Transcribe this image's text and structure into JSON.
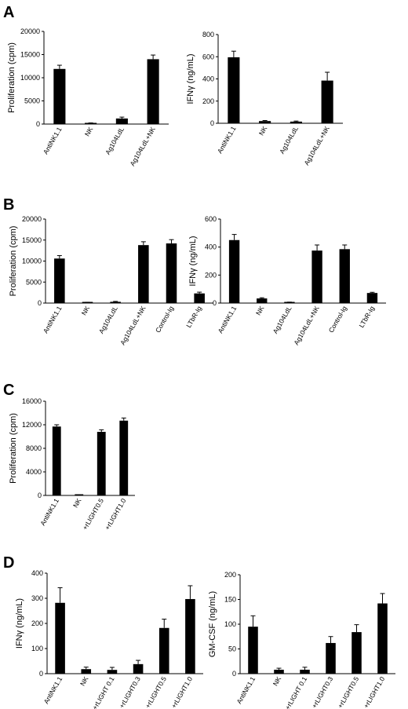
{
  "panels": [
    {
      "label": "A"
    },
    {
      "label": "B"
    },
    {
      "label": "C"
    },
    {
      "label": "D"
    }
  ],
  "chart_data": [
    {
      "panel": "A",
      "type": "bar",
      "ylabel": "Proliferation (cpm)",
      "categories": [
        "AntiNK1.1",
        "NK",
        "Ag104LdL",
        "Ag104LdL+NK"
      ],
      "values": [
        11900,
        150,
        1200,
        14000
      ],
      "errors": [
        800,
        100,
        300,
        900
      ],
      "yticks": [
        0,
        5000,
        10000,
        15000,
        20000
      ],
      "ylim": [
        0,
        20000
      ],
      "color": "#000000"
    },
    {
      "panel": "A",
      "type": "bar",
      "ylabel": "IFNγ (ng/mL)",
      "categories": [
        "AntiNK1.1",
        "NK",
        "Ag104LdL",
        "Ag104LdL+NK"
      ],
      "values": [
        595,
        20,
        15,
        385
      ],
      "errors": [
        55,
        5,
        5,
        75
      ],
      "yticks": [
        0,
        200,
        400,
        600,
        800
      ],
      "ylim": [
        0,
        800
      ],
      "color": "#000000"
    },
    {
      "panel": "B",
      "type": "bar",
      "ylabel": "Proliferation (cpm)",
      "categories": [
        "AntiNK1.1",
        "NK",
        "Ag104LdL",
        "Ag104LdL+NK",
        "Control-Ig",
        "LTbR-Ig"
      ],
      "values": [
        10600,
        150,
        300,
        13800,
        14200,
        2300
      ],
      "errors": [
        700,
        50,
        100,
        800,
        900,
        300
      ],
      "yticks": [
        0,
        5000,
        10000,
        15000,
        20000
      ],
      "ylim": [
        0,
        20000
      ],
      "color": "#000000"
    },
    {
      "panel": "B",
      "type": "bar",
      "ylabel": "IFNγ (ng/mL)",
      "categories": [
        "AntiNK1.1",
        "NK",
        "Ag104LdL",
        "Ag104LdL+NK",
        "Control-Ig",
        "LTbR-Ig"
      ],
      "values": [
        450,
        33,
        5,
        375,
        385,
        72
      ],
      "errors": [
        40,
        5,
        2,
        40,
        30,
        5
      ],
      "yticks": [
        0,
        200,
        400,
        600
      ],
      "ylim": [
        0,
        600
      ],
      "color": "#000000"
    },
    {
      "panel": "C",
      "type": "bar",
      "ylabel": "Proliferation (cpm)",
      "categories": [
        "AntiNK1.1",
        "NK",
        "+rLIGHT0.5",
        "+rLIGHT1.0"
      ],
      "values": [
        11700,
        50,
        10800,
        12700
      ],
      "errors": [
        300,
        50,
        350,
        450
      ],
      "yticks": [
        0,
        4000,
        8000,
        12000,
        16000
      ],
      "ylim": [
        0,
        16000
      ],
      "color": "#000000"
    },
    {
      "panel": "D",
      "type": "bar",
      "ylabel": "IFNγ (ng/mL)",
      "categories": [
        "AntiNK1.1",
        "NK",
        "+rLIGHT 0.1",
        "+rLIGHT0.3",
        "+rLIGHT0.5",
        "+rLIGHT1.0"
      ],
      "values": [
        282,
        18,
        15,
        38,
        182,
        297
      ],
      "errors": [
        60,
        8,
        10,
        15,
        35,
        53
      ],
      "yticks": [
        0,
        100,
        200,
        300,
        400
      ],
      "ylim": [
        0,
        400
      ],
      "color": "#000000"
    },
    {
      "panel": "D",
      "type": "bar",
      "ylabel": "GM-CSF (ng/mL)",
      "categories": [
        "AntiNK1.1",
        "NK",
        "+rLIGHT 0.1",
        "+rLIGHT0.3",
        "+rLIGHT0.5",
        "+rLIGHT1.0"
      ],
      "values": [
        95,
        8,
        8,
        62,
        84,
        142
      ],
      "errors": [
        22,
        3,
        5,
        13,
        15,
        20
      ],
      "yticks": [
        0,
        50,
        100,
        150,
        200
      ],
      "ylim": [
        0,
        200
      ],
      "color": "#000000"
    }
  ]
}
